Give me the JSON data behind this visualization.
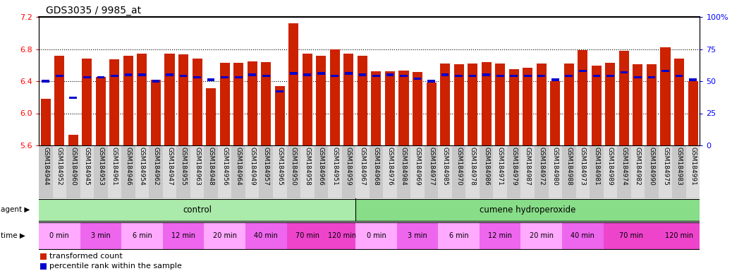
{
  "title": "GDS3035 / 9985_at",
  "samples": [
    "GSM184944",
    "GSM184952",
    "GSM184960",
    "GSM184945",
    "GSM184953",
    "GSM184961",
    "GSM184946",
    "GSM184954",
    "GSM184962",
    "GSM184947",
    "GSM184955",
    "GSM184963",
    "GSM184948",
    "GSM184956",
    "GSM184964",
    "GSM184949",
    "GSM184957",
    "GSM184965",
    "GSM184950",
    "GSM184958",
    "GSM184966",
    "GSM184951",
    "GSM184959",
    "GSM184967",
    "GSM184968",
    "GSM184976",
    "GSM184984",
    "GSM184969",
    "GSM184977",
    "GSM184985",
    "GSM184970",
    "GSM184978",
    "GSM184986",
    "GSM184971",
    "GSM184979",
    "GSM184987",
    "GSM184972",
    "GSM184980",
    "GSM184988",
    "GSM184973",
    "GSM184981",
    "GSM184989",
    "GSM184974",
    "GSM184982",
    "GSM184990",
    "GSM184975",
    "GSM184983",
    "GSM184991"
  ],
  "bar_values": [
    6.18,
    6.72,
    5.73,
    6.68,
    6.45,
    6.67,
    6.72,
    6.74,
    6.42,
    6.74,
    6.73,
    6.68,
    6.31,
    6.63,
    6.63,
    6.65,
    6.64,
    6.34,
    7.12,
    6.74,
    6.72,
    6.8,
    6.74,
    6.72,
    6.52,
    6.52,
    6.53,
    6.51,
    6.38,
    6.62,
    6.61,
    6.62,
    6.64,
    6.62,
    6.55,
    6.57,
    6.62,
    6.4,
    6.62,
    6.79,
    6.59,
    6.63,
    6.78,
    6.61,
    6.61,
    6.82,
    6.68,
    6.4
  ],
  "percentile_values": [
    50,
    54,
    37,
    53,
    53,
    54,
    55,
    55,
    50,
    55,
    54,
    53,
    51,
    53,
    53,
    55,
    54,
    42,
    56,
    55,
    56,
    54,
    56,
    55,
    54,
    55,
    54,
    52,
    50,
    55,
    54,
    54,
    55,
    54,
    54,
    54,
    54,
    51,
    54,
    58,
    54,
    54,
    57,
    53,
    53,
    58,
    54,
    51
  ],
  "ylim_left": [
    5.6,
    7.2
  ],
  "ylim_right": [
    0,
    100
  ],
  "yticks_left": [
    5.6,
    6.0,
    6.4,
    6.8,
    7.2
  ],
  "yticks_right": [
    0,
    25,
    50,
    75,
    100
  ],
  "ytick_labels_right": [
    "0",
    "25",
    "50",
    "75",
    "100%"
  ],
  "agent_groups": [
    {
      "label": "control",
      "start": 0,
      "end": 23,
      "color": "#aaeaaa"
    },
    {
      "label": "cumene hydroperoxide",
      "start": 23,
      "end": 48,
      "color": "#88dd88"
    }
  ],
  "time_groups": [
    {
      "label": "0 min",
      "start": 0,
      "end": 3,
      "color": "#ffaaff"
    },
    {
      "label": "3 min",
      "start": 3,
      "end": 6,
      "color": "#ee66ee"
    },
    {
      "label": "6 min",
      "start": 6,
      "end": 9,
      "color": "#ffaaff"
    },
    {
      "label": "12 min",
      "start": 9,
      "end": 12,
      "color": "#ee66ee"
    },
    {
      "label": "20 min",
      "start": 12,
      "end": 15,
      "color": "#ffaaff"
    },
    {
      "label": "40 min",
      "start": 15,
      "end": 18,
      "color": "#ee66ee"
    },
    {
      "label": "70 min",
      "start": 18,
      "end": 21,
      "color": "#ee44cc"
    },
    {
      "label": "120 min",
      "start": 21,
      "end": 23,
      "color": "#ee44cc"
    },
    {
      "label": "0 min",
      "start": 23,
      "end": 26,
      "color": "#ffaaff"
    },
    {
      "label": "3 min",
      "start": 26,
      "end": 29,
      "color": "#ee66ee"
    },
    {
      "label": "6 min",
      "start": 29,
      "end": 32,
      "color": "#ffaaff"
    },
    {
      "label": "12 min",
      "start": 32,
      "end": 35,
      "color": "#ee66ee"
    },
    {
      "label": "20 min",
      "start": 35,
      "end": 38,
      "color": "#ffaaff"
    },
    {
      "label": "40 min",
      "start": 38,
      "end": 41,
      "color": "#ee66ee"
    },
    {
      "label": "70 min",
      "start": 41,
      "end": 45,
      "color": "#ee44cc"
    },
    {
      "label": "120 min",
      "start": 45,
      "end": 48,
      "color": "#ee44cc"
    }
  ],
  "bar_color": "#cc2200",
  "percentile_color": "#0000cc",
  "background_color": "#ffffff",
  "title_fontsize": 10,
  "tick_fontsize": 6.5,
  "label_fontsize": 8,
  "grid_yticks": [
    6.0,
    6.4,
    6.8
  ]
}
